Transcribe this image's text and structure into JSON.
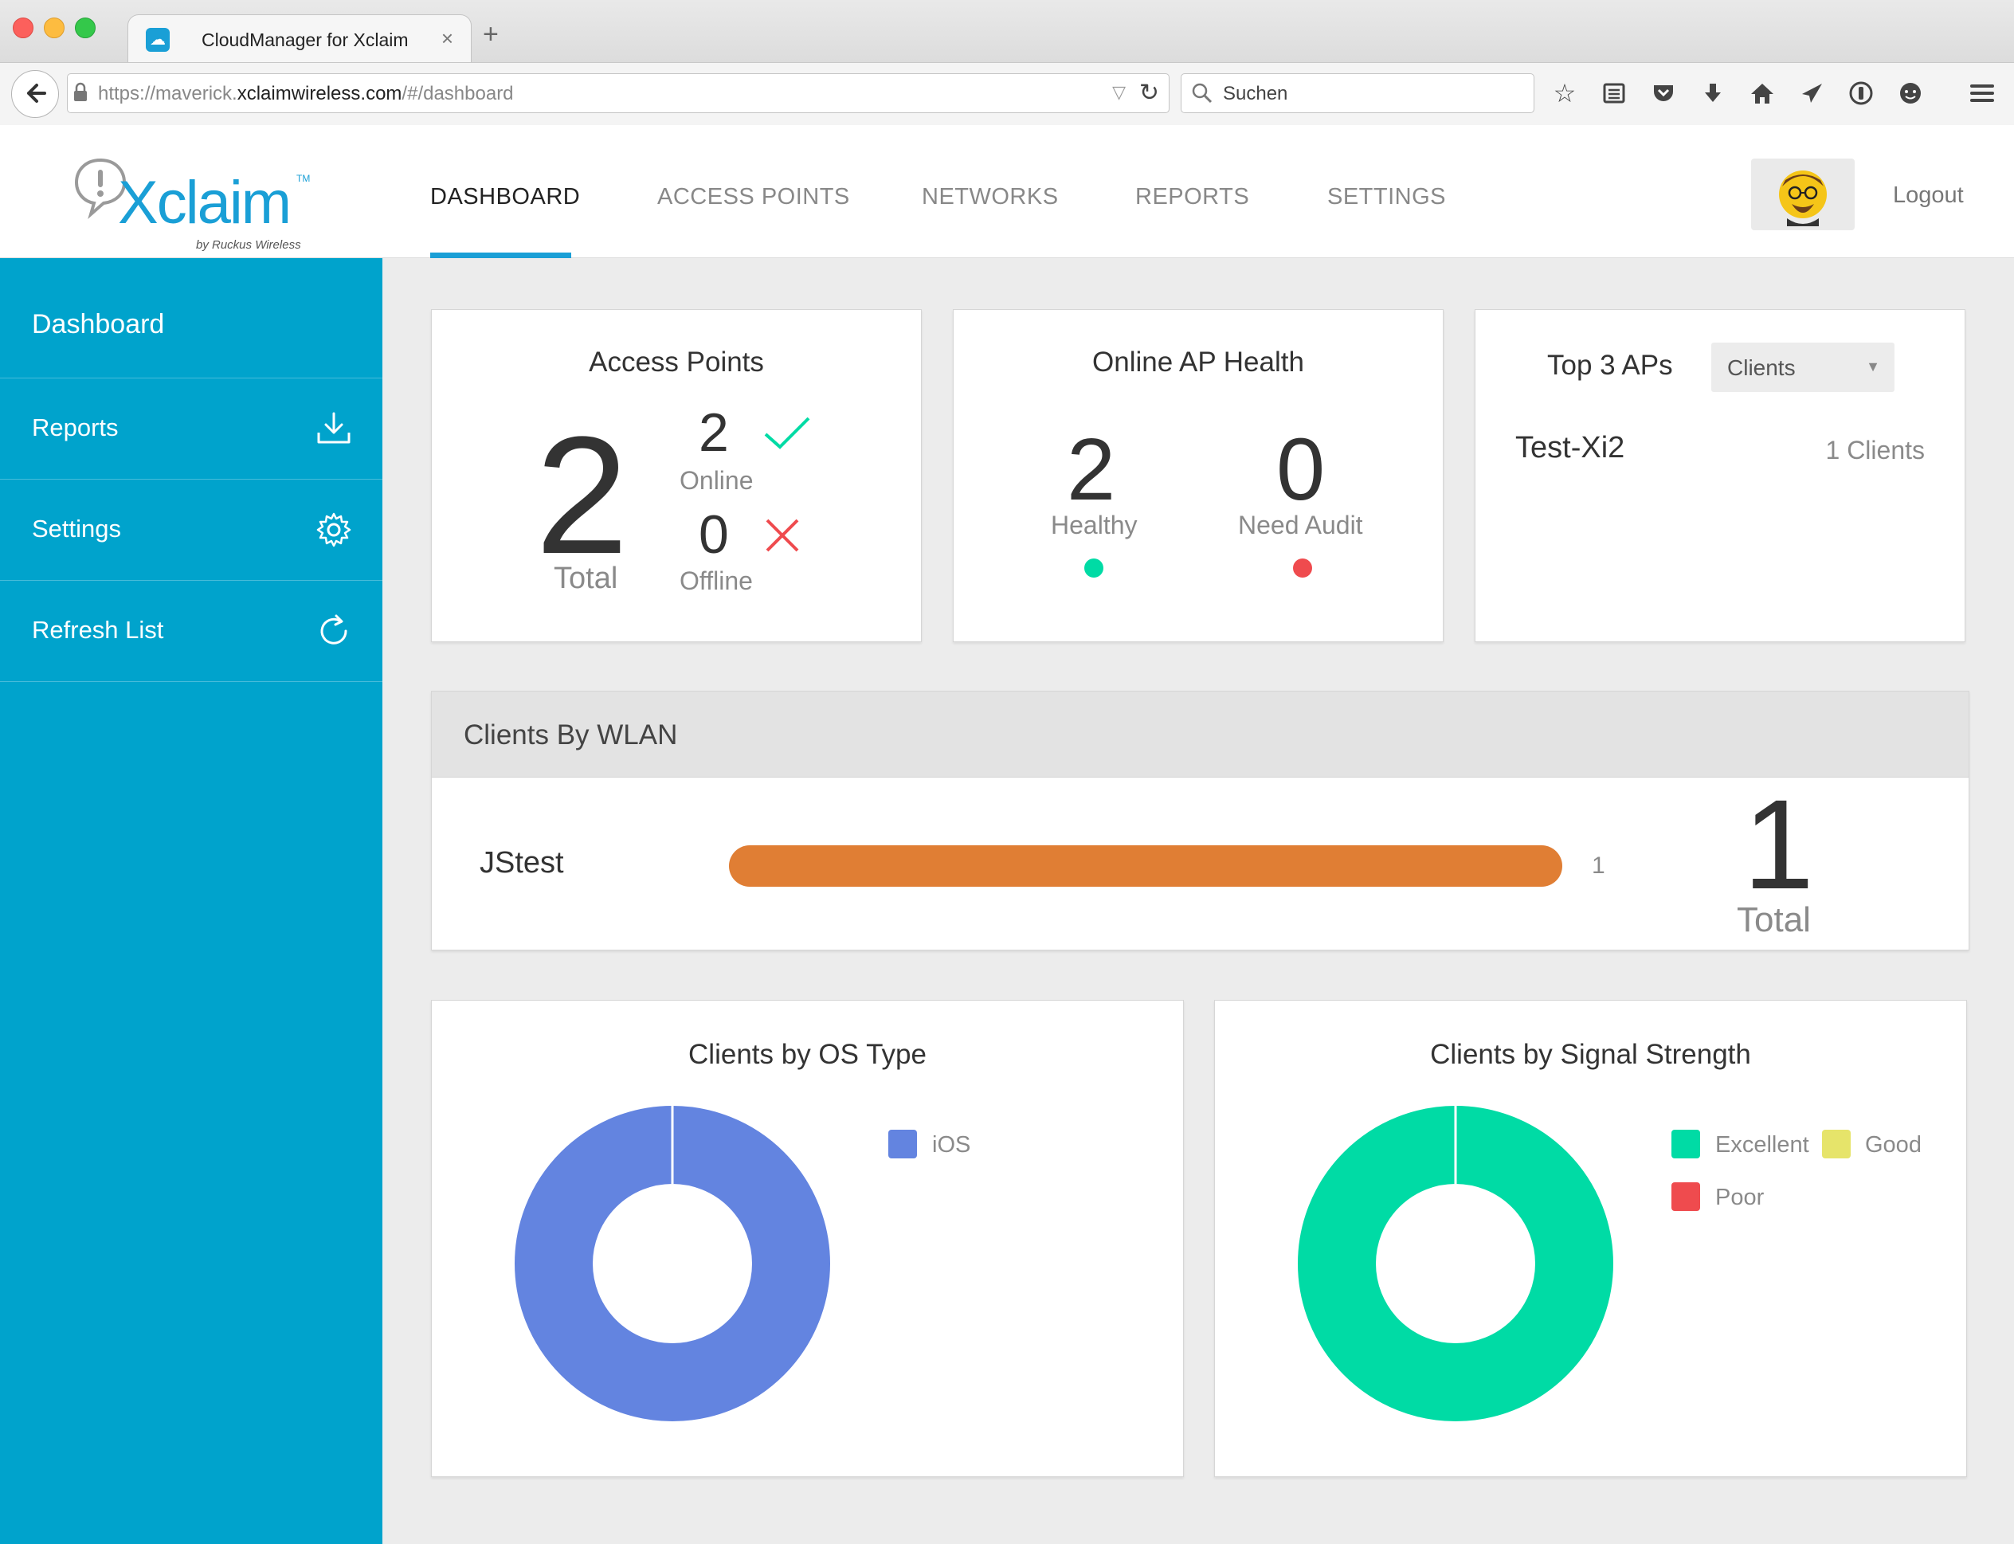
{
  "browser": {
    "tab_title": "CloudManager for Xclaim",
    "url_prefix": "https://maverick.",
    "url_domain": "xclaimwireless.com",
    "url_path": "/#/dashboard",
    "search_placeholder": "Suchen"
  },
  "app": {
    "logo_text": "Xclaim",
    "logo_sub": "by Ruckus Wireless",
    "logo_tm": "TM",
    "nav": [
      "DASHBOARD",
      "ACCESS POINTS",
      "NETWORKS",
      "REPORTS",
      "SETTINGS"
    ],
    "active_nav": "DASHBOARD",
    "logout": "Logout"
  },
  "sidebar": {
    "title": "Dashboard",
    "items": [
      {
        "label": "Reports",
        "icon": "download-icon"
      },
      {
        "label": "Settings",
        "icon": "gear-icon"
      },
      {
        "label": "Refresh List",
        "icon": "refresh-icon"
      }
    ]
  },
  "access_points": {
    "title": "Access Points",
    "total": "2",
    "total_label": "Total",
    "online": "2",
    "online_label": "Online",
    "offline": "0",
    "offline_label": "Offline"
  },
  "ap_health": {
    "title": "Online AP Health",
    "healthy": "2",
    "healthy_label": "Healthy",
    "audit": "0",
    "audit_label": "Need Audit"
  },
  "top_aps": {
    "title": "Top 3 APs",
    "dropdown": "Clients",
    "rows": [
      {
        "name": "Test-Xi2",
        "value": "1 Clients"
      }
    ]
  },
  "clients_wlan": {
    "title": "Clients By WLAN",
    "rows": [
      {
        "name": "JStest",
        "count": "1",
        "fraction": 1.0
      }
    ],
    "total": "1",
    "total_label": "Total"
  },
  "os_chart": {
    "title": "Clients by OS Type",
    "legend": [
      "iOS"
    ]
  },
  "signal_chart": {
    "title": "Clients by Signal Strength",
    "legend": [
      "Excellent",
      "Good",
      "Poor"
    ]
  },
  "colors": {
    "accent": "#00a3cc",
    "ios": "#6384e0",
    "excellent": "#00dba5",
    "good": "#e6e46a",
    "poor": "#ef4b4e",
    "wlan_bar": "#e07e34"
  },
  "chart_data": [
    {
      "type": "pie",
      "title": "Clients by OS Type",
      "categories": [
        "iOS"
      ],
      "values": [
        1
      ]
    },
    {
      "type": "pie",
      "title": "Clients by Signal Strength",
      "categories": [
        "Excellent",
        "Good",
        "Poor"
      ],
      "values": [
        1,
        0,
        0
      ]
    }
  ]
}
